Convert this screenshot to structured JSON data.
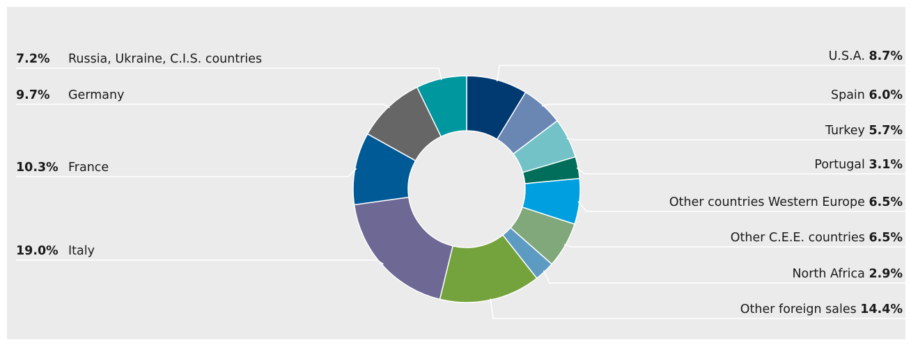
{
  "chart_data": {
    "type": "pie",
    "variant": "donut",
    "slices": [
      {
        "label": "U.S.A.",
        "pct_text": "8.7%",
        "value": 8.7,
        "color": "#003a70",
        "label_side": "right"
      },
      {
        "label": "Spain",
        "pct_text": "6.0%",
        "value": 6.0,
        "color": "#6a87b4",
        "label_side": "right"
      },
      {
        "label": "Turkey",
        "pct_text": "5.7%",
        "value": 5.7,
        "color": "#72c2c8",
        "label_side": "right"
      },
      {
        "label": "Portugal",
        "pct_text": "3.1%",
        "value": 3.1,
        "color": "#006e5a",
        "label_side": "right"
      },
      {
        "label": "Other countries Western Europe",
        "pct_text": "6.5%",
        "value": 6.5,
        "color": "#00a0e0",
        "label_side": "right"
      },
      {
        "label": "Other C.E.E. countries",
        "pct_text": "6.5%",
        "value": 6.5,
        "color": "#80a87a",
        "label_side": "right"
      },
      {
        "label": "North Africa",
        "pct_text": "2.9%",
        "value": 2.9,
        "color": "#5e9bc3",
        "label_side": "right"
      },
      {
        "label": "Other foreign sales",
        "pct_text": "14.4%",
        "value": 14.4,
        "color": "#74a23c",
        "label_side": "right"
      },
      {
        "label": "Italy",
        "pct_text": "19.0%",
        "value": 19.0,
        "color": "#6e6895",
        "label_side": "left"
      },
      {
        "label": "France",
        "pct_text": "10.3%",
        "value": 10.3,
        "color": "#005a96",
        "label_side": "left"
      },
      {
        "label": "Germany",
        "pct_text": "9.7%",
        "value": 9.7,
        "color": "#666666",
        "label_side": "left"
      },
      {
        "label": "Russia, Ukraine, C.I.S. countries",
        "pct_text": "7.2%",
        "value": 7.2,
        "color": "#00979e",
        "label_side": "left"
      }
    ]
  }
}
